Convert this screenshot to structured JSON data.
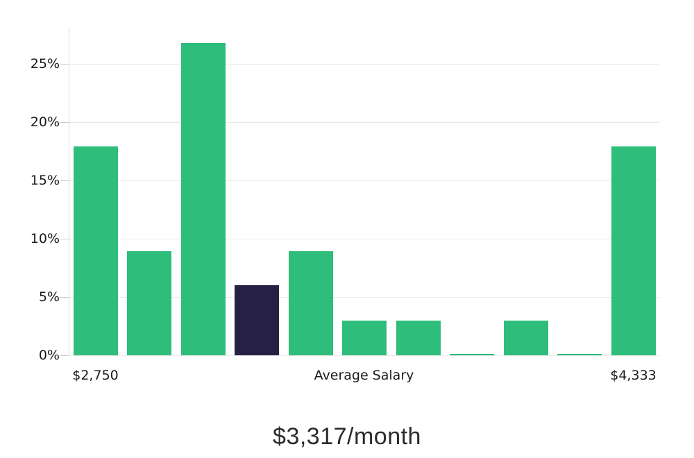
{
  "chart_data": {
    "type": "bar",
    "values": [
      17.9,
      8.9,
      26.8,
      6.0,
      8.9,
      3.0,
      3.0,
      0.1,
      3.0,
      0.1,
      17.9
    ],
    "unit": "%",
    "highlight_index": 3,
    "y_tick_values": [
      0,
      5,
      10,
      15,
      20,
      25
    ],
    "y_tick_labels": [
      "0%",
      "5%",
      "10%",
      "15%",
      "20%",
      "25%"
    ],
    "ylim": [
      0,
      28
    ],
    "grid": "horizontal",
    "legend": "none",
    "x_tick_labels": [
      {
        "label": "$2,750",
        "anchor": "first-bar"
      },
      {
        "label": "Average Salary",
        "anchor": "axis-center"
      },
      {
        "label": "$4,333",
        "anchor": "last-bar"
      }
    ],
    "caption": "$3,317/month",
    "colors": {
      "bar": "#2ebd7b",
      "highlight_bar": "#262144",
      "gridline": "#e9e9e9",
      "tick_mark": "#c9c9c9",
      "axis_line": "#d8d8d8",
      "tick_text": "#1a1a1a",
      "caption_text": "#2b2b2b",
      "background": "#ffffff"
    }
  }
}
